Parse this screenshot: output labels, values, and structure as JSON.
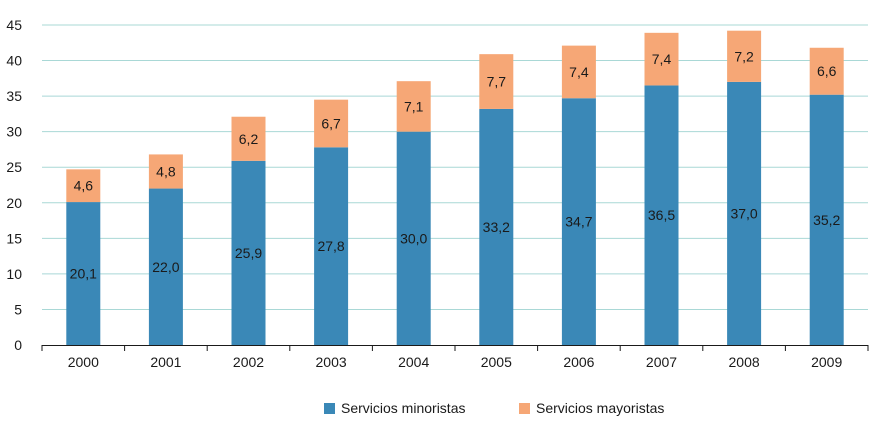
{
  "chart_data": {
    "type": "bar",
    "stacked": true,
    "categories": [
      "2000",
      "2001",
      "2002",
      "2003",
      "2004",
      "2005",
      "2006",
      "2007",
      "2008",
      "2009"
    ],
    "series": [
      {
        "name": "Servicios minoristas",
        "color": "#3a88b7",
        "values": [
          20.1,
          22.0,
          25.9,
          27.8,
          30.0,
          33.2,
          34.7,
          36.5,
          37.0,
          35.2
        ],
        "labels": [
          "20,1",
          "22,0",
          "25,9",
          "27,8",
          "30,0",
          "33,2",
          "34,7",
          "36,5",
          "37,0",
          "35,2"
        ]
      },
      {
        "name": "Servicios mayoristas",
        "color": "#f6a776",
        "values": [
          4.6,
          4.8,
          6.2,
          6.7,
          7.1,
          7.7,
          7.4,
          7.4,
          7.2,
          6.6
        ],
        "labels": [
          "4,6",
          "4,8",
          "6,2",
          "6,7",
          "7,1",
          "7,7",
          "7,4",
          "7,4",
          "7,2",
          "6,6"
        ]
      }
    ],
    "ylim": [
      0,
      45
    ],
    "yticks": [
      "0",
      "5",
      "10",
      "15",
      "20",
      "25",
      "30",
      "35",
      "40",
      "45"
    ],
    "grid": true,
    "grid_color": "#a9d8d6",
    "legend_position": "bottom-center"
  }
}
